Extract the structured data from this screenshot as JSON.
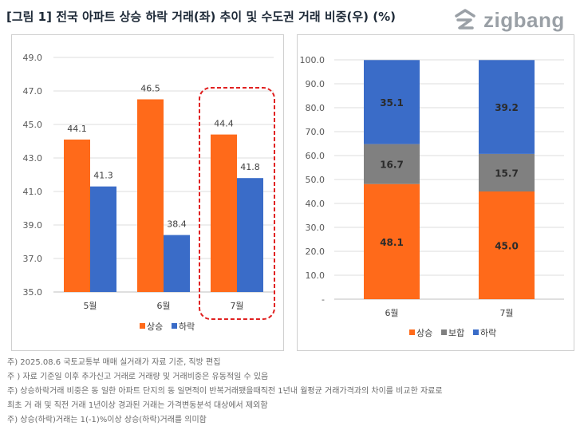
{
  "header": {
    "title": "[그림 1] 전국 아파트 상승 하락 거래(좌) 추이 및 수도권 거래 비중(우) (%)",
    "logo_text": "zigbang",
    "logo_icon": "zigbang-logo-icon"
  },
  "colors": {
    "orange": "#ff6a1a",
    "blue": "#3a6cc8",
    "gray": "#808080",
    "highlight": "#e02020"
  },
  "chart_data": [
    {
      "type": "bar",
      "title": "전국 아파트 상승 하락 거래 추이",
      "categories": [
        "5월",
        "6월",
        "7월"
      ],
      "series": [
        {
          "name": "상승",
          "values": [
            44.1,
            46.5,
            44.4
          ],
          "labels": [
            "44.1",
            "46.5",
            "44.4"
          ],
          "color": "#ff6a1a"
        },
        {
          "name": "하락",
          "values": [
            41.3,
            38.4,
            41.8
          ],
          "labels": [
            "41.3",
            "38.4",
            "41.8"
          ],
          "color": "#3a6cc8"
        }
      ],
      "ylim": [
        35.0,
        49.0
      ],
      "yticks": [
        "35.0",
        "37.0",
        "39.0",
        "41.0",
        "43.0",
        "45.0",
        "47.0",
        "49.0"
      ],
      "highlight_category": "7월",
      "legend_position": "bottom"
    },
    {
      "type": "bar",
      "stacked": true,
      "title": "수도권 거래 비중",
      "categories": [
        "6월",
        "7월"
      ],
      "series": [
        {
          "name": "상승",
          "values": [
            48.1,
            45.0
          ],
          "labels": [
            "48.1",
            "45.0"
          ],
          "color": "#ff6a1a"
        },
        {
          "name": "보합",
          "values": [
            16.7,
            15.7
          ],
          "labels": [
            "16.7",
            "15.7"
          ],
          "color": "#808080"
        },
        {
          "name": "하락",
          "values": [
            35.1,
            39.2
          ],
          "labels": [
            "35.1",
            "39.2"
          ],
          "color": "#3a6cc8"
        }
      ],
      "ylim": [
        0,
        100
      ],
      "yticks": [
        "-",
        "10.0",
        "20.0",
        "30.0",
        "40.0",
        "50.0",
        "60.0",
        "70.0",
        "80.0",
        "90.0",
        "100.0"
      ],
      "legend_position": "bottom"
    }
  ],
  "notes": [
    "주) 2025.08.6  국토교통부 매매 실거래가 자료 기준, 직방 편집",
    "주 ) 자료 기준일 이후 추가신고 거래로 거래량 및 거래비중은 유동적일 수 있음",
    "주) 상승하락거래 비중은 동 일한 아파트 단지의 동 일면적이 반복거래됐을때직전 1년내 월평균 거래가격과의 차이를 비교한 자료로",
    "최초 거 래 및 직전 거래 1년이상 경과된 거래는 가격변동분석 대상에서 제외함",
    "주) 상승(하락)거래는 1(-1)%이상 상승(하락)거래를 의미함"
  ]
}
